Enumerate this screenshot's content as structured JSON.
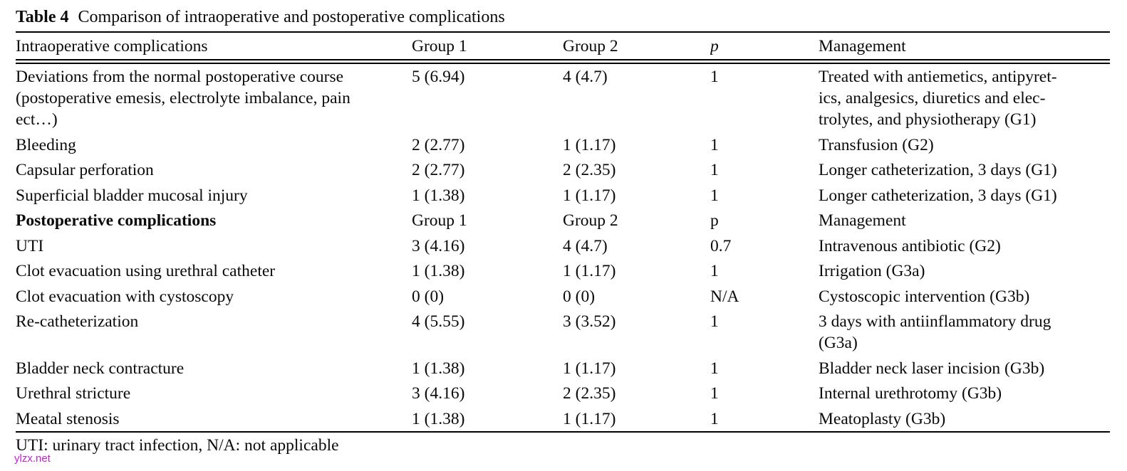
{
  "title": {
    "label": "Table 4",
    "caption": "Comparison of intraoperative and postoperative complications"
  },
  "table": {
    "header": {
      "col1": "Intraoperative complications",
      "col2": "Group 1",
      "col3": "Group 2",
      "col4": "p",
      "col5": "Management"
    },
    "intraoperative_rows": [
      {
        "name": "Deviations from the normal postoperative course\n(postoperative emesis, electrolyte imbalance, pain\nect…)",
        "group1": "5 (6.94)",
        "group2": "4 (4.7)",
        "p": "1",
        "management": "Treated with antiemetics, antipyret-\nics, analgesics, diuretics and elec-\ntrolytes, and physiotherapy (G1)"
      },
      {
        "name": "Bleeding",
        "group1": "2 (2.77)",
        "group2": "1 (1.17)",
        "p": "1",
        "management": "Transfusion (G2)"
      },
      {
        "name": "Capsular perforation",
        "group1": "2 (2.77)",
        "group2": "2 (2.35)",
        "p": "1",
        "management": "Longer catheterization, 3 days (G1)"
      },
      {
        "name": "Superficial bladder mucosal injury",
        "group1": "1 (1.38)",
        "group2": "1 (1.17)",
        "p": "1",
        "management": "Longer catheterization, 3 days (G1)"
      }
    ],
    "subheader": {
      "col1": "Postoperative complications",
      "col2": "Group 1",
      "col3": "Group 2",
      "col4": "p",
      "col5": "Management"
    },
    "postoperative_rows": [
      {
        "name": "UTI",
        "group1": "3 (4.16)",
        "group2": "4 (4.7)",
        "p": "0.7",
        "management": "Intravenous antibiotic (G2)"
      },
      {
        "name": "Clot evacuation using urethral catheter",
        "group1": "1 (1.38)",
        "group2": "1 (1.17)",
        "p": "1",
        "management": "Irrigation (G3a)"
      },
      {
        "name": "Clot evacuation with cystoscopy",
        "group1": "0 (0)",
        "group2": "0 (0)",
        "p": "N/A",
        "management": "Cystoscopic intervention (G3b)"
      },
      {
        "name": "Re-catheterization",
        "group1": "4 (5.55)",
        "group2": "3 (3.52)",
        "p": "1",
        "management": "3 days with antiinflammatory drug\n(G3a)"
      },
      {
        "name": "Bladder neck contracture",
        "group1": "1 (1.38)",
        "group2": "1 (1.17)",
        "p": "1",
        "management": "Bladder neck laser incision (G3b)"
      },
      {
        "name": "Urethral stricture",
        "group1": "3 (4.16)",
        "group2": "2 (2.35)",
        "p": "1",
        "management": "Internal urethrotomy (G3b)"
      },
      {
        "name": "Meatal stenosis",
        "group1": "1 (1.38)",
        "group2": "1 (1.17)",
        "p": "1",
        "management": "Meatoplasty (G3b)"
      }
    ],
    "footnote": "UTI: urinary tract infection, N/A: not applicable"
  },
  "watermark": {
    "text": "ylzx.net",
    "color": "#c71fd3"
  }
}
